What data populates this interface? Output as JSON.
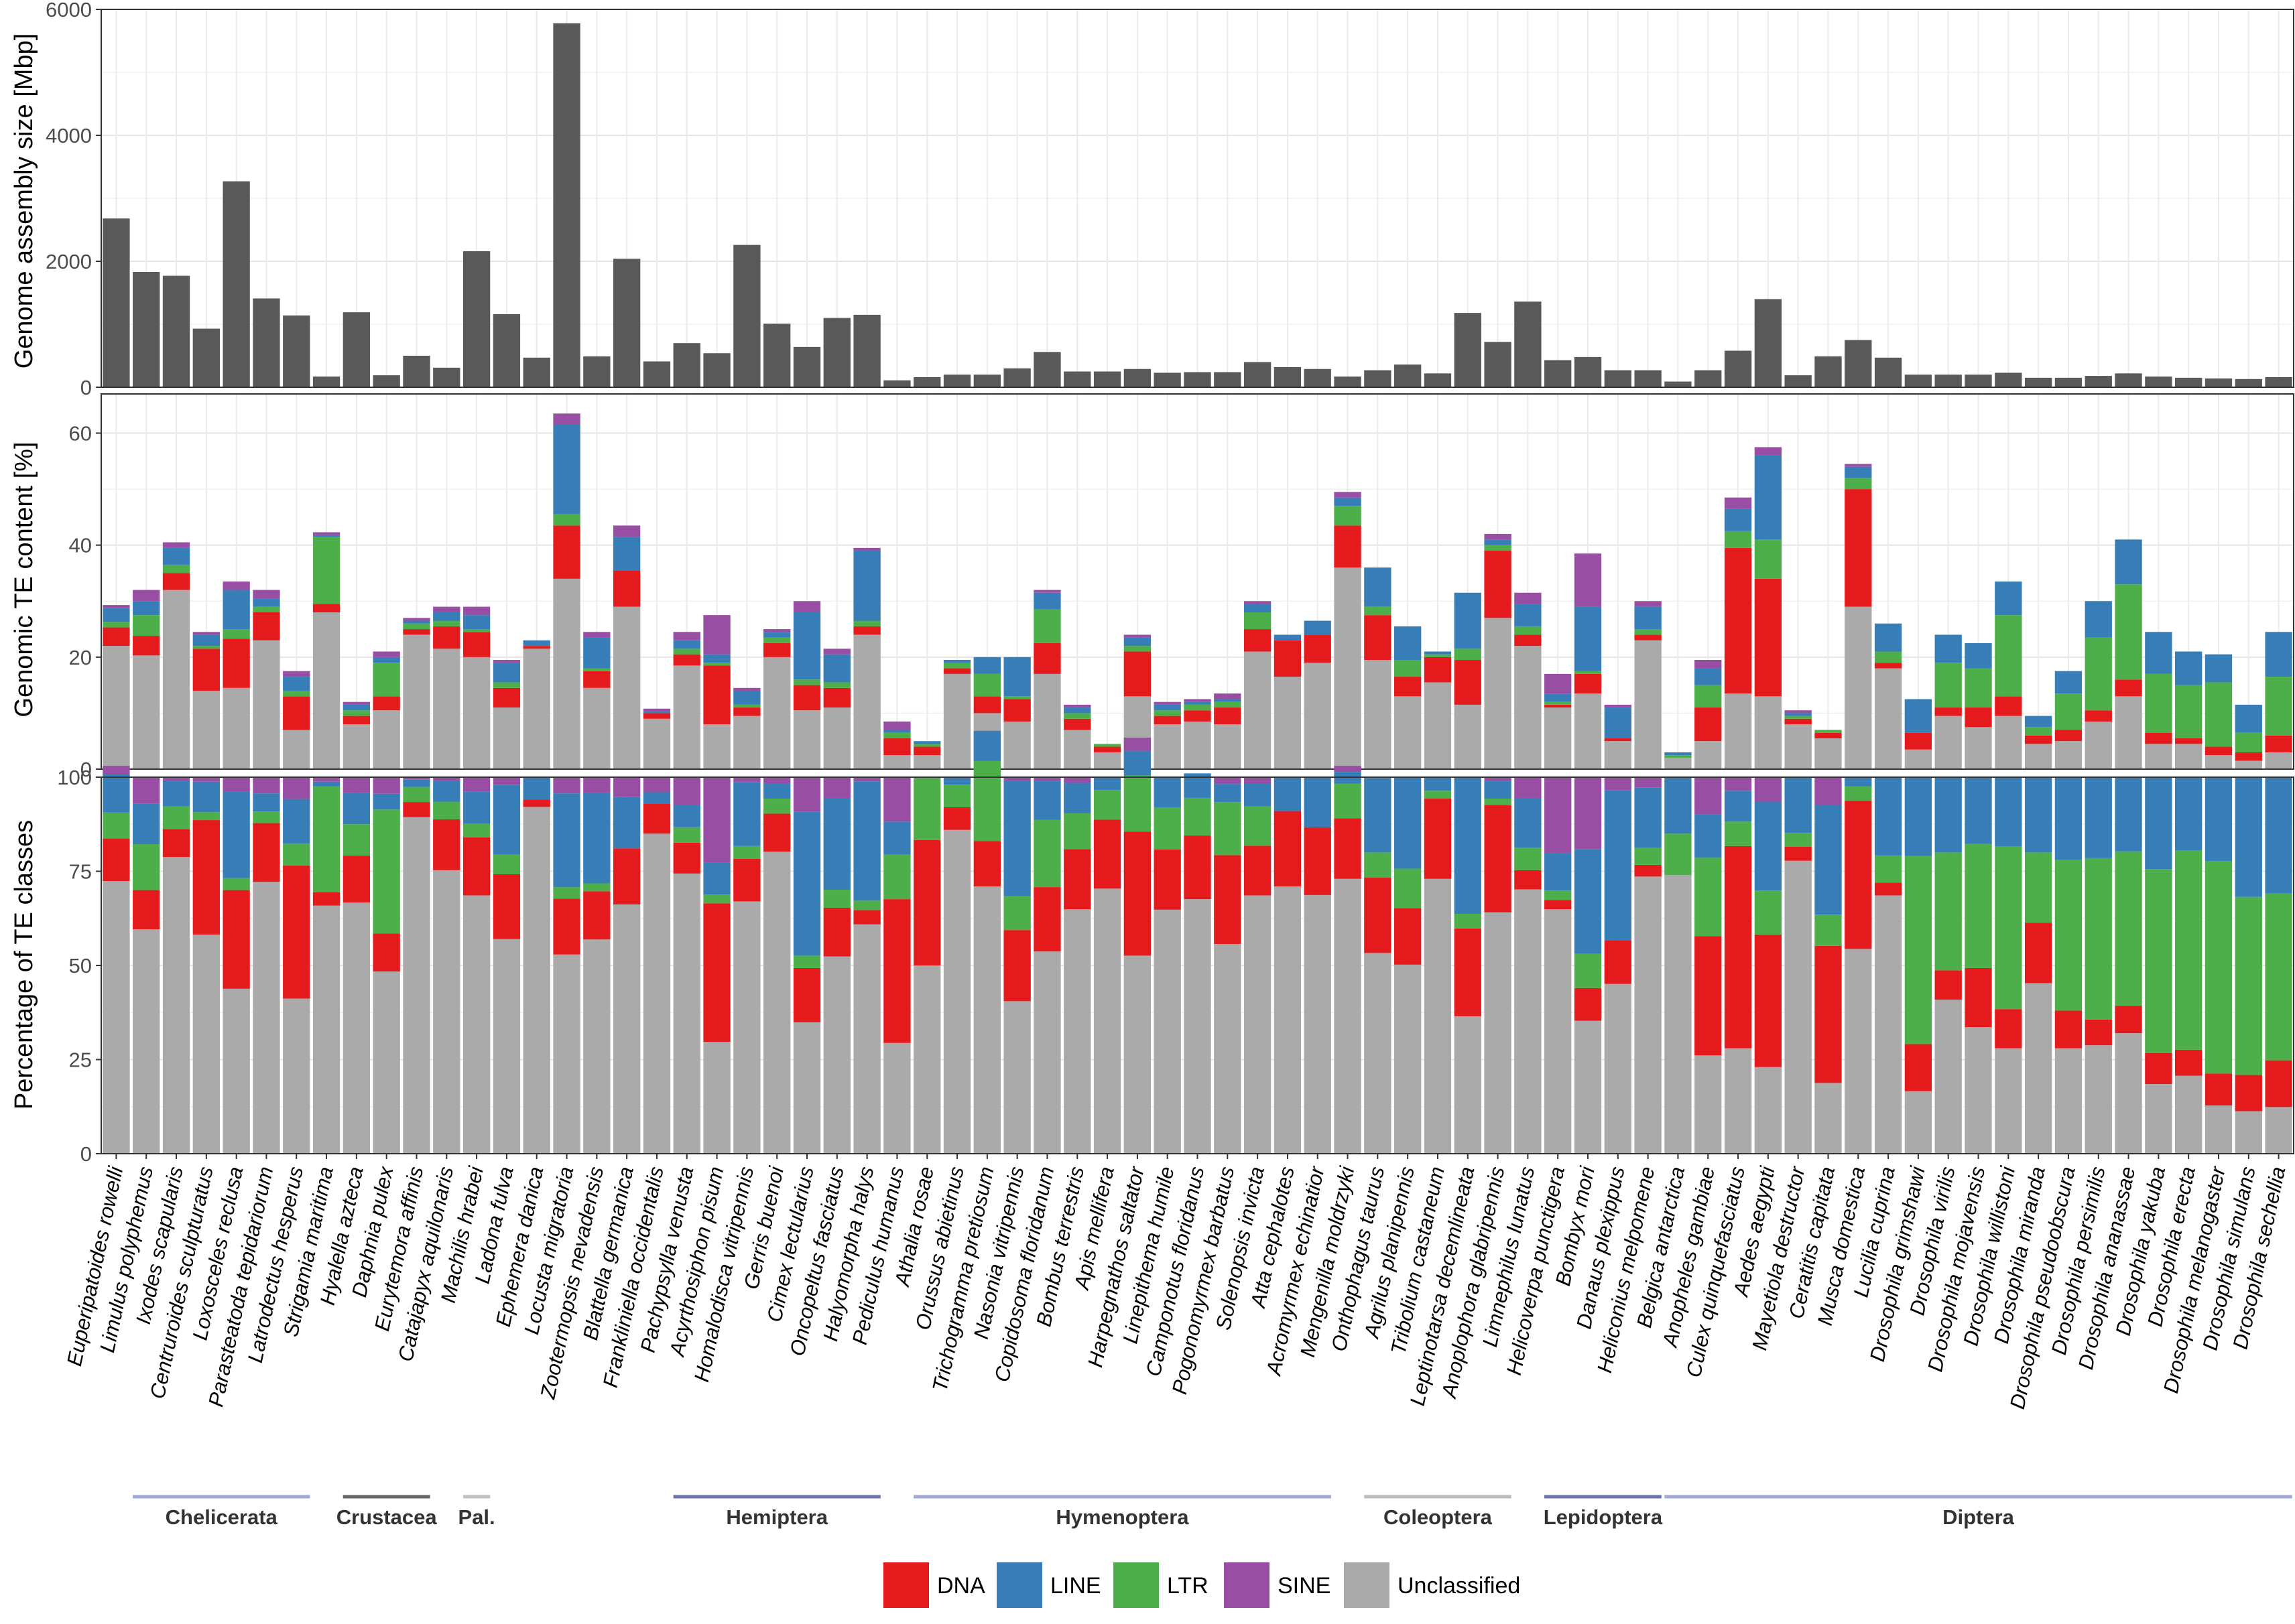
{
  "chart_data": [
    {
      "type": "bar",
      "ylabel": "Genome assembly size [Mbp]",
      "ylim": [
        0,
        6000
      ],
      "yticks": [
        0,
        2000,
        4000,
        6000
      ],
      "bar_color": "#595959",
      "values": [
        2680,
        1830,
        1770,
        930,
        3270,
        1410,
        1140,
        170,
        1190,
        190,
        500,
        310,
        2160,
        1160,
        470,
        5780,
        490,
        2040,
        410,
        700,
        540,
        2260,
        1010,
        640,
        1100,
        1150,
        110,
        160,
        200,
        200,
        300,
        560,
        250,
        250,
        290,
        230,
        240,
        240,
        400,
        320,
        290,
        170,
        270,
        360,
        220,
        1180,
        720,
        1360,
        430,
        480,
        270,
        270,
        90,
        270,
        580,
        1400,
        190,
        490,
        750,
        470,
        200,
        200,
        200,
        230,
        150,
        150,
        180,
        220,
        170,
        150,
        140,
        130,
        160
      ],
      "grid": true
    },
    {
      "type": "bar",
      "stacked": true,
      "ylabel": "Genomic TE content [%]",
      "ylim": [
        0,
        67
      ],
      "yticks": [
        0,
        20,
        40,
        60
      ],
      "series": [
        {
          "name": "Unclassified",
          "color": "#AAAAAA",
          "values": [
            22,
            20.3,
            32,
            14,
            14.5,
            23,
            7,
            28,
            8,
            10.5,
            24,
            21.5,
            20,
            11,
            21.5,
            34,
            14.5,
            29,
            9,
            18.5,
            8,
            9.5,
            20,
            10.5,
            11,
            24,
            2.5,
            2.5,
            17,
            10,
            8.5,
            17,
            7,
            3,
            13,
            8,
            8.5,
            8,
            21,
            16.5,
            19,
            36,
            19.5,
            13,
            15.5,
            11.5,
            27,
            22,
            11,
            13.5,
            5,
            23,
            2,
            5,
            13.5,
            13,
            8,
            5.5,
            29,
            18,
            3.5,
            9.5,
            7.5,
            9.5,
            4.5,
            5,
            8.5,
            13,
            4.5,
            4.5,
            2.5,
            1.5,
            3
          ]
        },
        {
          "name": "DNA",
          "color": "#E41A1C",
          "values": [
            3.3,
            3.5,
            3,
            7.5,
            8.8,
            5,
            6,
            1.5,
            1.5,
            2.5,
            1,
            4,
            4.5,
            3.5,
            0.5,
            9.5,
            3,
            6.5,
            1,
            2,
            10.5,
            1.5,
            2.5,
            4.5,
            3.5,
            1.5,
            3,
            1.5,
            1,
            3,
            4,
            5.5,
            2,
            1,
            8,
            1.5,
            2,
            3,
            4,
            6.5,
            5,
            7.5,
            8,
            3.5,
            4.5,
            8,
            12,
            2,
            0.5,
            3.5,
            0.5,
            1,
            0,
            6,
            26,
            21,
            1,
            1,
            21,
            1,
            3,
            1.5,
            3.5,
            3.5,
            1.5,
            2,
            2,
            3,
            2,
            1,
            1.5,
            1.5,
            3
          ]
        },
        {
          "name": "LTR",
          "color": "#4DAF4A",
          "values": [
            1,
            3.7,
            1.5,
            0.5,
            1.7,
            1,
            1,
            12,
            1,
            6,
            1,
            1,
            0.5,
            1,
            0,
            2,
            0.5,
            0,
            0,
            1,
            0.5,
            0.5,
            1,
            1,
            1,
            1,
            1,
            0.5,
            1,
            4,
            0.5,
            6,
            1,
            0.5,
            1,
            1,
            1,
            1,
            3,
            0,
            0,
            3.5,
            1.5,
            3,
            0.5,
            2,
            1,
            1.5,
            0.5,
            0.5,
            0,
            1,
            0.5,
            4,
            3,
            7,
            0.5,
            0.5,
            2,
            2,
            0,
            8,
            7,
            14.5,
            1.5,
            6.5,
            13,
            17,
            10.5,
            9.5,
            11.5,
            3.5,
            10.5
          ]
        },
        {
          "name": "LINE",
          "color": "#377EB8",
          "values": [
            2.5,
            2.5,
            3,
            2,
            7,
            1.5,
            2.5,
            0.3,
            1,
            1,
            0.5,
            1.5,
            2.5,
            3.5,
            1,
            16,
            5.5,
            6,
            0.3,
            1.5,
            1.5,
            2.5,
            1,
            12,
            5,
            12.5,
            0.5,
            0.5,
            0.5,
            3,
            7,
            3,
            1,
            0,
            1.5,
            1,
            0.5,
            0.5,
            1.5,
            1,
            2.5,
            1.5,
            7,
            6,
            0.5,
            10,
            1,
            4,
            1.5,
            11.5,
            5.5,
            4,
            0.5,
            3,
            4,
            15,
            0.5,
            0,
            2,
            5,
            6,
            5,
            4.5,
            6,
            2,
            4,
            6.5,
            8,
            7.5,
            6,
            5,
            5,
            8
          ]
        },
        {
          "name": "SINE",
          "color": "#984EA3",
          "values": [
            0.5,
            2,
            1,
            0.5,
            1.5,
            1.5,
            1,
            0.5,
            0.5,
            1,
            0.5,
            1,
            1.5,
            0.5,
            0,
            2,
            1,
            2,
            0.5,
            1.5,
            7,
            0.5,
            0.5,
            2,
            1,
            0.5,
            1.5,
            0,
            0,
            0,
            0,
            0.5,
            0.5,
            0,
            0.5,
            0.5,
            0.5,
            1,
            0.5,
            0,
            0,
            1,
            0,
            0,
            0,
            0,
            1,
            2,
            3.5,
            9.5,
            0.5,
            1,
            0,
            1.5,
            2,
            1.5,
            0.5,
            0,
            0.5,
            0,
            0,
            0,
            0,
            0,
            0,
            0,
            0,
            0,
            0,
            0,
            0,
            0,
            0
          ]
        }
      ],
      "grid": true
    },
    {
      "type": "bar",
      "stacked": true,
      "ylabel": "Percentage of TE classes",
      "ylim": [
        0,
        100
      ],
      "yticks": [
        0,
        25,
        50,
        75,
        100
      ],
      "series": [
        {
          "name": "Unclassified",
          "color": "#AAAAAA",
          "values": [
            72.4,
            59.6,
            78.8,
            58.2,
            43.8,
            72.2,
            41.2,
            65.9,
            66.7,
            48.4,
            89.4,
            75.3,
            68.6,
            57,
            92.1,
            52.9,
            56.9,
            66.2,
            85,
            74.4,
            29.7,
            67,
            80.2,
            34.9,
            52.4,
            60.9,
            29.4,
            50,
            86,
            71,
            40.5,
            53.7,
            64.9,
            70.4,
            52.6,
            64.8,
            67.6,
            55.7,
            68.6,
            71,
            68.7,
            73,
            53.3,
            50.2,
            73,
            36.5,
            64.1,
            70.2,
            64.9,
            35.3,
            45.1,
            73.6,
            74,
            26.1,
            28,
            23,
            77.8,
            18.8,
            54.4,
            68.6,
            16.6,
            40.9,
            33.6,
            28,
            45.3,
            28,
            28.8,
            32,
            18.5,
            20.7,
            12.8,
            11.3,
            12.4
          ]
        },
        {
          "name": "DNA",
          "color": "#E41A1C",
          "values": [
            11.3,
            10.4,
            7.4,
            30.4,
            26.2,
            15.6,
            35.3,
            3.5,
            12.5,
            10.1,
            4,
            13.5,
            15.4,
            17.2,
            2,
            14.8,
            12.8,
            14.9,
            8,
            8.2,
            36.8,
            11.3,
            10.1,
            14.4,
            12.9,
            3.8,
            38.2,
            33.3,
            6,
            12,
            18.9,
            17.1,
            16,
            18.3,
            32.9,
            16,
            16.9,
            23.6,
            13.2,
            20,
            18,
            16.1,
            20,
            15,
            21.3,
            23.3,
            28.5,
            5.1,
            2.5,
            8.7,
            11.6,
            3.1,
            0,
            31.7,
            53.7,
            35.2,
            3.7,
            36.4,
            39.4,
            3.4,
            12.5,
            7.8,
            15.7,
            10.4,
            16,
            10,
            6.8,
            7.3,
            8.2,
            6.9,
            8.5,
            9.6,
            12.4
          ]
        },
        {
          "name": "LTR",
          "color": "#4DAF4A",
          "values": [
            6.9,
            12.2,
            6,
            2.1,
            3.2,
            3.1,
            5.9,
            28.2,
            8.3,
            32.9,
            4,
            4.7,
            3.6,
            5.2,
            0,
            3.1,
            2.1,
            0,
            0,
            4.1,
            2.3,
            3.4,
            4,
            3.3,
            4.8,
            2.5,
            11.8,
            16.7,
            6,
            21.3,
            9,
            17.9,
            9.5,
            7.9,
            14.9,
            11.2,
            10,
            14.1,
            10.4,
            0,
            0,
            9.2,
            6.7,
            10.5,
            2.1,
            3.9,
            1.7,
            6,
            2.5,
            9.1,
            0,
            4.5,
            11,
            20.8,
            6.5,
            11.7,
            3.7,
            8.3,
            3.8,
            7.2,
            50,
            31.3,
            33,
            43.2,
            18.7,
            40,
            42.9,
            41,
            48.9,
            53,
            56.4,
            47.3,
            44.3
          ]
        },
        {
          "name": "LINE",
          "color": "#377EB8",
          "values": [
            10.2,
            10.8,
            6.9,
            8.1,
            22.9,
            4.8,
            11.8,
            1.2,
            8.3,
            4.2,
            2,
            5.5,
            8.6,
            18.6,
            5.9,
            24.9,
            24.1,
            13.6,
            3,
            6,
            8.5,
            17,
            4,
            38.2,
            24.3,
            31.7,
            8.8,
            0,
            2,
            8,
            30.6,
            10.4,
            8.1,
            3.4,
            6.6,
            8,
            6.5,
            4.8,
            6.2,
            9,
            13.3,
            3.1,
            19.8,
            24.3,
            3.5,
            36.3,
            4.8,
            13.1,
            10,
            27.8,
            39.8,
            16,
            15,
            11.6,
            8.2,
            23.6,
            14.8,
            29.2,
            2.4,
            20.8,
            20.9,
            20,
            17.7,
            18.4,
            20,
            22,
            21.5,
            19.7,
            24.4,
            19.4,
            22.3,
            31.8,
            30.9
          ]
        },
        {
          "name": "SINE",
          "color": "#984EA3",
          "values": [
            2.2,
            7,
            0.9,
            1.2,
            3.9,
            4.3,
            5.8,
            1.2,
            4.2,
            4.4,
            0.6,
            1,
            3.8,
            2,
            0,
            4.3,
            4.1,
            5.3,
            4,
            7.3,
            22.7,
            1.3,
            1.7,
            9.2,
            5.6,
            1.1,
            11.8,
            0,
            0,
            0,
            1,
            0.9,
            1.5,
            0,
            3.5,
            0,
            0,
            1.8,
            1.6,
            0,
            0,
            1.6,
            0,
            0,
            0,
            0,
            0.9,
            5.6,
            20.1,
            19.1,
            3.5,
            2.8,
            0,
            9.8,
            3.6,
            6.5,
            0,
            7.3,
            0,
            0,
            0,
            0,
            0,
            0,
            0,
            0,
            0,
            0,
            0,
            0,
            0,
            0,
            0
          ]
        }
      ],
      "grid": true
    }
  ],
  "species": [
    "Euperipatoides rowelli",
    "Limulus polyphemus",
    "Ixodes scapularis",
    "Centruroides sculpturatus",
    "Loxosceles reclusa",
    "Parasteatoda tepidariorum",
    "Latrodectus hesperus",
    "Strigamia maritima",
    "Hyalella azteca",
    "Daphnia pulex",
    "Eurytemora affinis",
    "Catajapyx aquilonaris",
    "Machilis hrabei",
    "Ladona fulva",
    "Ephemera danica",
    "Locusta migratoria",
    "Zootermopsis nevadensis",
    "Blattella germanica",
    "Frankliniella occidentalis",
    "Pachypsylla venusta",
    "Acyrthosiphon pisum",
    "Homalodisca vitripennis",
    "Gerris buenoi",
    "Cimex lectularius",
    "Oncopeltus fasciatus",
    "Halyomorpha halys",
    "Pediculus humanus",
    "Athalia rosae",
    "Orussus abietinus",
    "Trichogramma pretiosum",
    "Nasonia vitripennis",
    "Copidosoma floridanum",
    "Bombus terrestris",
    "Apis mellifera",
    "Harpegnathos saltator",
    "Linepithema humile",
    "Camponotus floridanus",
    "Pogonomyrmex barbatus",
    "Solenopsis invicta",
    "Atta cephalotes",
    "Acromyrmex echinatior",
    "Mengenilla moldrzyki",
    "Onthophagus taurus",
    "Agrilus planipennis",
    "Tribolium castaneum",
    "Leptinotarsa decemlineata",
    "Anoplophora glabripennis",
    "Limnephilus lunatus",
    "Helicoverpa punctigera",
    "Bombyx mori",
    "Danaus plexippus",
    "Heliconius melpomene",
    "Belgica antarctica",
    "Anopheles gambiae",
    "Culex quinquefasciatus",
    "Aedes aegypti",
    "Mayetiola destructor",
    "Ceratitis capitata",
    "Musca domestica",
    "Lucilia cuprina",
    "Drosophila grimshawi",
    "Drosophila virilis",
    "Drosophila mojavensis",
    "Drosophila willistoni",
    "Drosophila miranda",
    "Drosophila pseudoobscura",
    "Drosophila persimilis",
    "Drosophila ananassae",
    "Drosophila yakuba",
    "Drosophila erecta",
    "Drosophila melanogaster",
    "Drosophila simulans",
    "Drosophila sechellia"
  ],
  "groups": [
    {
      "label": "Chelicerata",
      "first": 1,
      "last": 6,
      "color": "#9FA9D8"
    },
    {
      "label": "Crustacea",
      "first": 8,
      "last": 10,
      "color": "#666666"
    },
    {
      "label": "Pal.",
      "first": 12,
      "last": 12,
      "color": "#C0C0C0"
    },
    {
      "label": "Hemiptera",
      "first": 19,
      "last": 25,
      "color": "#6B73A8"
    },
    {
      "label": "Hymenoptera",
      "first": 27,
      "last": 40,
      "color": "#9FA9D8"
    },
    {
      "label": "Coleoptera",
      "first": 42,
      "last": 46,
      "color": "#BBBBBB"
    },
    {
      "label": "Lepidoptera",
      "first": 48,
      "last": 51,
      "color": "#6B73A8"
    },
    {
      "label": "Diptera",
      "first": 52,
      "last": 72,
      "color": "#9FA9D8"
    }
  ],
  "legend": [
    {
      "label": "DNA",
      "color": "#E41A1C"
    },
    {
      "label": "LINE",
      "color": "#377EB8"
    },
    {
      "label": "LTR",
      "color": "#4DAF4A"
    },
    {
      "label": "SINE",
      "color": "#984EA3"
    },
    {
      "label": "Unclassified",
      "color": "#AAAAAA"
    }
  ]
}
